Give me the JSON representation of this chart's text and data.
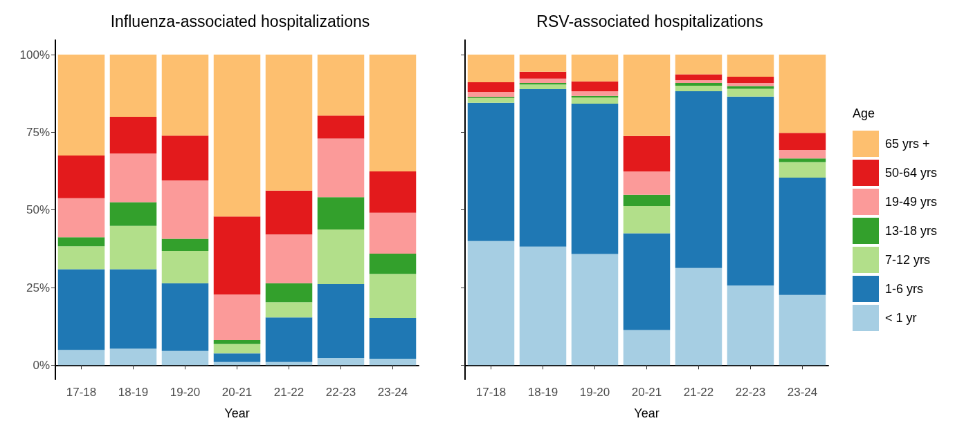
{
  "chart_data": [
    {
      "type": "bar",
      "title": "Influenza-associated hospitalizations",
      "xlabel": "Year",
      "categories": [
        "17-18",
        "18-19",
        "19-20",
        "20-21",
        "21-22",
        "22-23",
        "23-24"
      ],
      "stacked": true,
      "ylim": [
        -4.6,
        104.7
      ],
      "yticks": [
        {
          "value": 0,
          "label": "0%"
        },
        {
          "value": 25,
          "label": "25%"
        },
        {
          "value": 50,
          "label": "50%"
        },
        {
          "value": 75,
          "label": "75%"
        },
        {
          "value": 100,
          "label": "100%"
        }
      ],
      "grid": false,
      "legend": false,
      "series": [
        {
          "color": "#a6cee3",
          "values": [
            4.9,
            5.3,
            4.6,
            1.0,
            1.0,
            2.3,
            2.1
          ]
        },
        {
          "color": "#1f78b4",
          "values": [
            26.0,
            25.6,
            21.8,
            2.8,
            14.4,
            23.8,
            13.1
          ]
        },
        {
          "color": "#b2df8a",
          "values": [
            7.4,
            14.0,
            10.4,
            3.0,
            4.9,
            17.6,
            14.2
          ]
        },
        {
          "color": "#33a02c",
          "values": [
            2.9,
            7.6,
            3.9,
            1.3,
            6.1,
            10.4,
            6.5
          ]
        },
        {
          "color": "#fb9a99",
          "values": [
            12.6,
            15.7,
            18.8,
            14.7,
            15.7,
            18.9,
            13.2
          ]
        },
        {
          "color": "#e31a1c",
          "values": [
            13.7,
            11.8,
            14.4,
            25.1,
            14.1,
            7.4,
            13.3
          ]
        },
        {
          "color": "#fdbf6f",
          "values": [
            32.5,
            20.0,
            26.1,
            52.1,
            43.8,
            19.6,
            37.6
          ]
        }
      ]
    },
    {
      "type": "bar",
      "title": "RSV-associated hospitalizations",
      "xlabel": "Year",
      "categories": [
        "17-18",
        "18-19",
        "19-20",
        "20-21",
        "21-22",
        "22-23",
        "23-24"
      ],
      "stacked": true,
      "ylim": [
        -4.6,
        104.7
      ],
      "tick_labels": "x",
      "grid": false,
      "legend": "right",
      "legend_title": "Age",
      "yticks": [
        {
          "value": 0,
          "label": null
        },
        {
          "value": 25,
          "label": null
        },
        {
          "value": 50,
          "label": null
        },
        {
          "value": 75,
          "label": null
        },
        {
          "value": 100,
          "label": null
        }
      ],
      "series": [
        {
          "name": "< 1 yr",
          "color": "#a6cee3",
          "values": [
            40.0,
            38.2,
            35.8,
            11.3,
            31.3,
            25.7,
            22.6
          ]
        },
        {
          "name": "1-6 yrs",
          "color": "#1f78b4",
          "values": [
            44.5,
            50.7,
            48.4,
            31.2,
            56.9,
            60.8,
            37.8
          ]
        },
        {
          "name": "7-12 yrs",
          "color": "#b2df8a",
          "values": [
            1.5,
            1.5,
            2.0,
            8.8,
            1.8,
            2.5,
            5.0
          ]
        },
        {
          "name": "13-18 yrs",
          "color": "#33a02c",
          "values": [
            0.4,
            0.5,
            0.5,
            3.6,
            0.9,
            0.9,
            1.2
          ]
        },
        {
          "name": "19-49 yrs",
          "color": "#fb9a99",
          "values": [
            1.6,
            1.4,
            1.5,
            7.5,
            0.9,
            1.0,
            2.7
          ]
        },
        {
          "name": "50-64 yrs",
          "color": "#e31a1c",
          "values": [
            3.1,
            2.2,
            3.2,
            11.4,
            1.9,
            2.0,
            5.5
          ]
        },
        {
          "name": "65 yrs +",
          "color": "#fdbf6f",
          "values": [
            8.9,
            5.5,
            8.6,
            26.2,
            6.3,
            7.1,
            25.2
          ]
        }
      ]
    }
  ]
}
